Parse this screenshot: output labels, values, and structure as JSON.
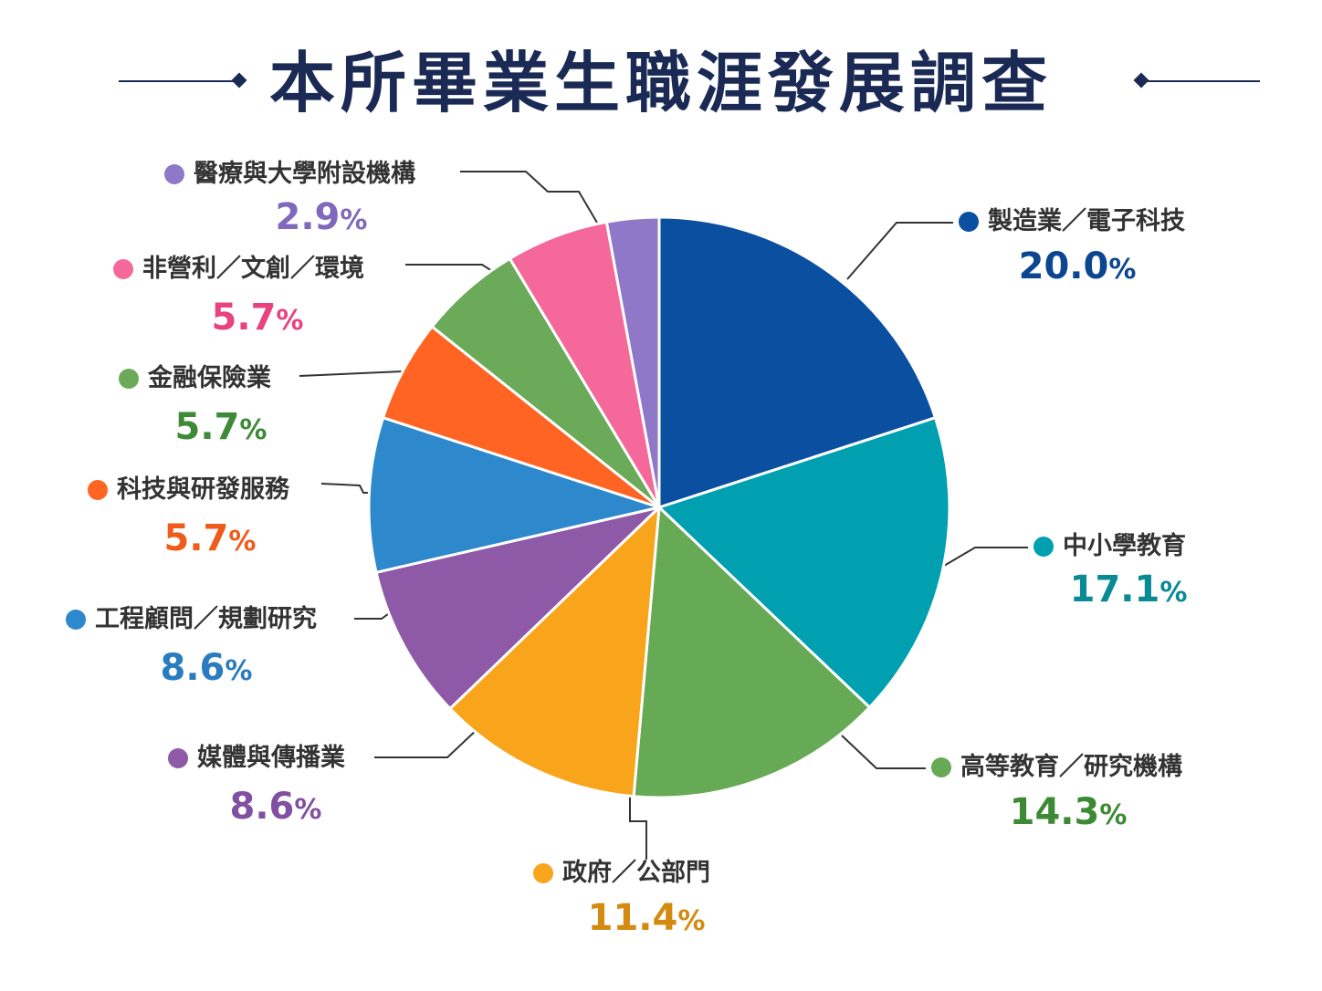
{
  "header": {
    "title": "本所畢業生職涯發展調查"
  },
  "chart_data": {
    "type": "pie",
    "title": "本所畢業生職涯發展調查",
    "unit": "%",
    "slices": [
      {
        "label": "製造業／電子科技",
        "value": 20.0,
        "display": "20.0",
        "color": "#0a4fa0",
        "text_color": "#0b4690"
      },
      {
        "label": "中小學教育",
        "value": 17.1,
        "display": "17.1",
        "color": "#00a0b0",
        "text_color": "#0a8a95"
      },
      {
        "label": "高等教育／研究機構",
        "value": 14.3,
        "display": "14.3",
        "color": "#66aa55",
        "text_color": "#3d8a35"
      },
      {
        "label": "政府／公部門",
        "value": 11.4,
        "display": "11.4",
        "color": "#f8a51c",
        "text_color": "#d48a10"
      },
      {
        "label": "媒體與傳播業",
        "value": 8.6,
        "display": "8.6",
        "color": "#8e5aa8",
        "text_color": "#8150a0"
      },
      {
        "label": "工程顧問／規劃研究",
        "value": 8.6,
        "display": "8.6",
        "color": "#2e88cc",
        "text_color": "#2a7cc0"
      },
      {
        "label": "科技與研發服務",
        "value": 5.7,
        "display": "5.7",
        "color": "#ff6422",
        "text_color": "#f05a1a"
      },
      {
        "label": "金融保險業",
        "value": 5.7,
        "display": "5.7",
        "color": "#6aaa58",
        "text_color": "#3e8a36"
      },
      {
        "label": "非營利／文創／環境",
        "value": 5.7,
        "display": "5.7",
        "color": "#f4689a",
        "text_color": "#e8427f"
      },
      {
        "label": "醫療與大學附設機構",
        "value": 2.9,
        "display": "2.9",
        "color": "#9078c8",
        "text_color": "#8068bc"
      }
    ]
  }
}
